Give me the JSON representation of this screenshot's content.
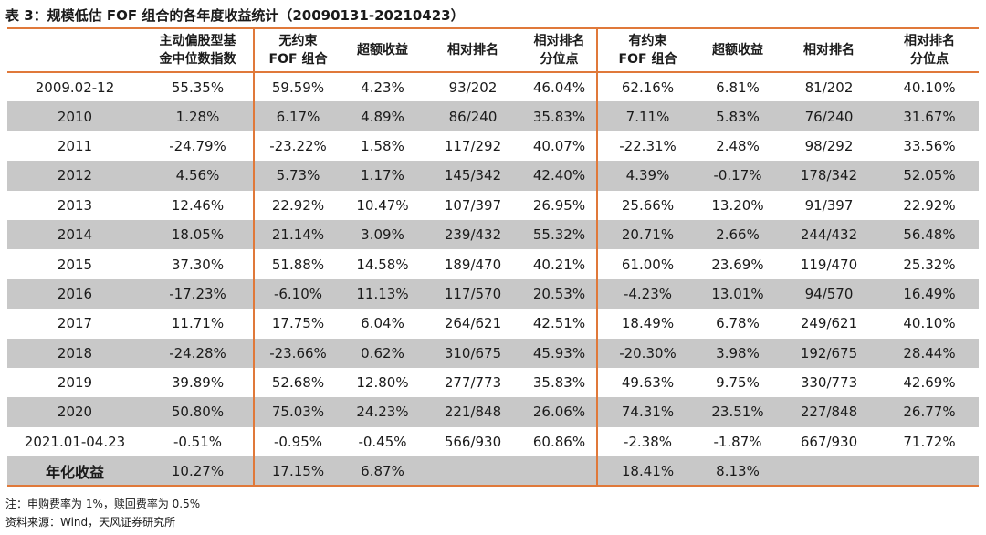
{
  "caption": "表 3：规模低估 FOF 组合的各年度收益统计（20090131-20210423）",
  "headers": [
    [
      "",
      ""
    ],
    [
      "主动偏股型基",
      "金中位数指数"
    ],
    [
      "无约束",
      "FOF 组合"
    ],
    [
      "超额收益",
      ""
    ],
    [
      "相对排名",
      ""
    ],
    [
      "相对排名",
      "分位点"
    ],
    [
      "有约束",
      "FOF 组合"
    ],
    [
      "超额收益",
      ""
    ],
    [
      "相对排名",
      ""
    ],
    [
      "相对排名",
      "分位点"
    ]
  ],
  "rows": [
    [
      "2009.02-12",
      "55.35%",
      "59.59%",
      "4.23%",
      "93/202",
      "46.04%",
      "62.16%",
      "6.81%",
      "81/202",
      "40.10%"
    ],
    [
      "2010",
      "1.28%",
      "6.17%",
      "4.89%",
      "86/240",
      "35.83%",
      "7.11%",
      "5.83%",
      "76/240",
      "31.67%"
    ],
    [
      "2011",
      "-24.79%",
      "-23.22%",
      "1.58%",
      "117/292",
      "40.07%",
      "-22.31%",
      "2.48%",
      "98/292",
      "33.56%"
    ],
    [
      "2012",
      "4.56%",
      "5.73%",
      "1.17%",
      "145/342",
      "42.40%",
      "4.39%",
      "-0.17%",
      "178/342",
      "52.05%"
    ],
    [
      "2013",
      "12.46%",
      "22.92%",
      "10.47%",
      "107/397",
      "26.95%",
      "25.66%",
      "13.20%",
      "91/397",
      "22.92%"
    ],
    [
      "2014",
      "18.05%",
      "21.14%",
      "3.09%",
      "239/432",
      "55.32%",
      "20.71%",
      "2.66%",
      "244/432",
      "56.48%"
    ],
    [
      "2015",
      "37.30%",
      "51.88%",
      "14.58%",
      "189/470",
      "40.21%",
      "61.00%",
      "23.69%",
      "119/470",
      "25.32%"
    ],
    [
      "2016",
      "-17.23%",
      "-6.10%",
      "11.13%",
      "117/570",
      "20.53%",
      "-4.23%",
      "13.01%",
      "94/570",
      "16.49%"
    ],
    [
      "2017",
      "11.71%",
      "17.75%",
      "6.04%",
      "264/621",
      "42.51%",
      "18.49%",
      "6.78%",
      "249/621",
      "40.10%"
    ],
    [
      "2018",
      "-24.28%",
      "-23.66%",
      "0.62%",
      "310/675",
      "45.93%",
      "-20.30%",
      "3.98%",
      "192/675",
      "28.44%"
    ],
    [
      "2019",
      "39.89%",
      "52.68%",
      "12.80%",
      "277/773",
      "35.83%",
      "49.63%",
      "9.75%",
      "330/773",
      "42.69%"
    ],
    [
      "2020",
      "50.80%",
      "75.03%",
      "24.23%",
      "221/848",
      "26.06%",
      "74.31%",
      "23.51%",
      "227/848",
      "26.77%"
    ],
    [
      "2021.01-04.23",
      "-0.51%",
      "-0.95%",
      "-0.45%",
      "566/930",
      "60.86%",
      "-2.38%",
      "-1.87%",
      "667/930",
      "71.72%"
    ],
    [
      "年化收益",
      "10.27%",
      "17.15%",
      "6.87%",
      "",
      "",
      "18.41%",
      "8.13%",
      "",
      ""
    ]
  ],
  "notes": [
    "注：申购费率为 1%，赎回费率为 0.5%",
    "资料来源：Wind，天风证券研究所"
  ],
  "colors": {
    "accent": "#e0793a",
    "shade": "#c8c8c8"
  }
}
